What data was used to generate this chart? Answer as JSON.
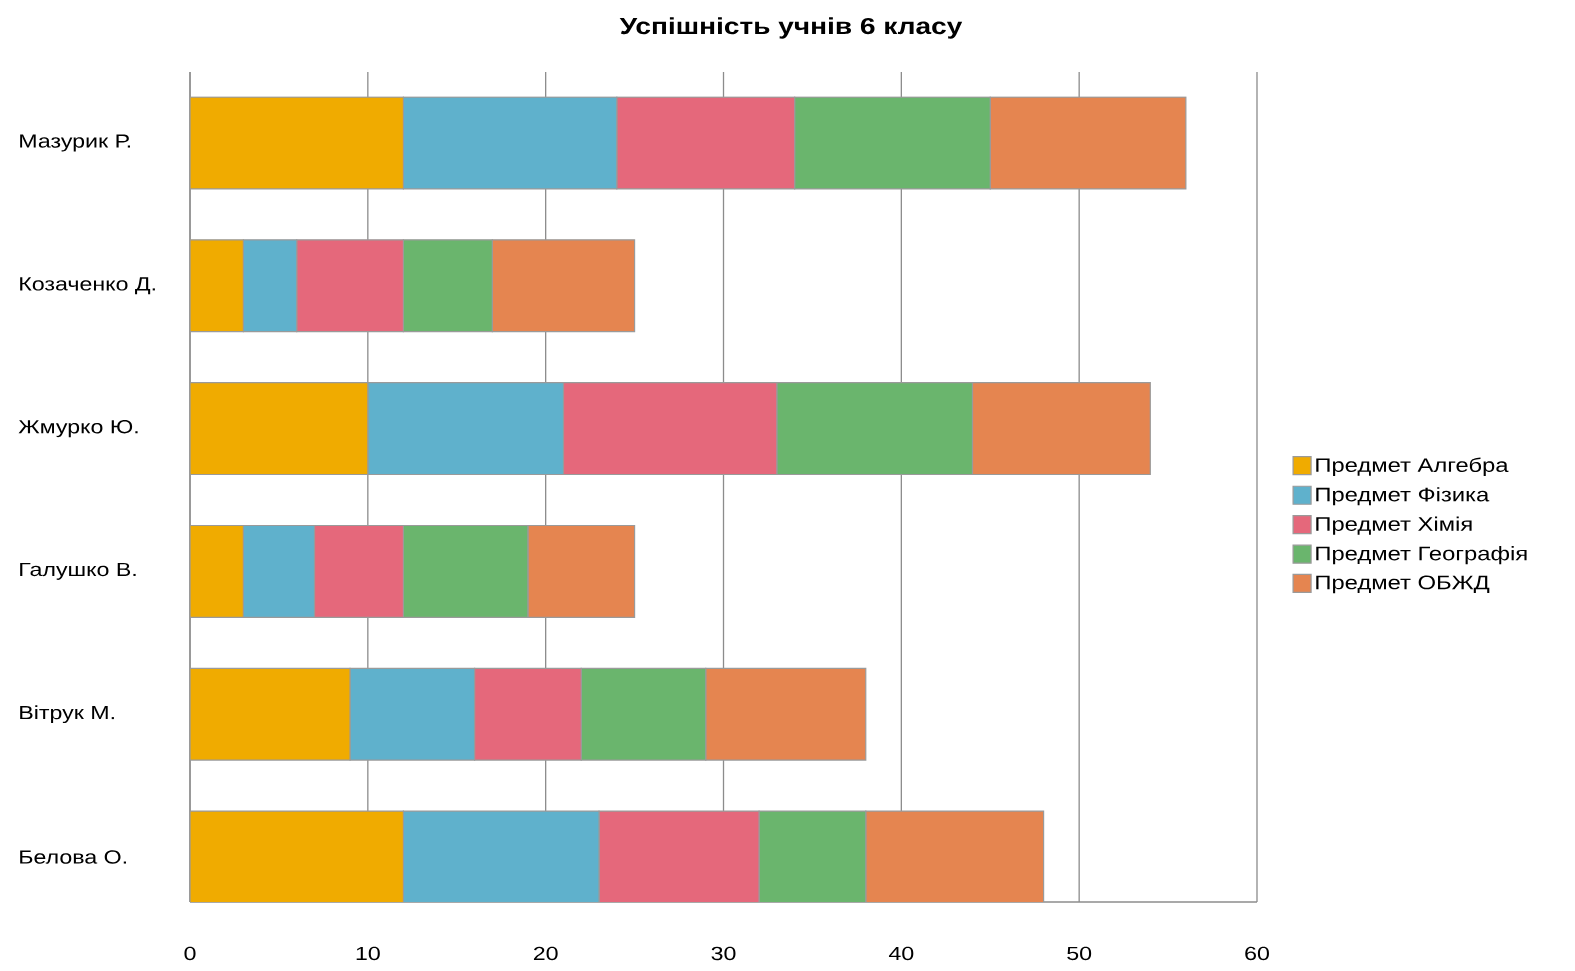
{
  "chart_data": {
    "type": "bar",
    "orientation": "horizontal",
    "stacked": true,
    "title": "Успішність учнів 6 класу",
    "categories": [
      "Мазурик Р.",
      "Козаченко Д.",
      "Жмурко Ю.",
      "Галушко В.",
      "Вітрук М.",
      "Белова О."
    ],
    "series": [
      {
        "name": "Предмет Алгебра",
        "color": "#f0ab00",
        "values": [
          12,
          3,
          10,
          3,
          9,
          12
        ]
      },
      {
        "name": "Предмет Фізика",
        "color": "#5fb1cc",
        "values": [
          12,
          3,
          11,
          4,
          7,
          11
        ]
      },
      {
        "name": "Предмет Хімія",
        "color": "#e5687b",
        "values": [
          10,
          6,
          12,
          5,
          6,
          9
        ]
      },
      {
        "name": "Предмет Географія",
        "color": "#6ab56d",
        "values": [
          11,
          5,
          11,
          7,
          7,
          6
        ]
      },
      {
        "name": "Предмет ОБЖД",
        "color": "#e58550",
        "values": [
          11,
          8,
          10,
          6,
          9,
          10
        ]
      }
    ],
    "xlim": [
      0,
      60
    ],
    "xticks": [
      0,
      10,
      20,
      30,
      40,
      50,
      60
    ],
    "grid": "x",
    "legend": "right"
  }
}
